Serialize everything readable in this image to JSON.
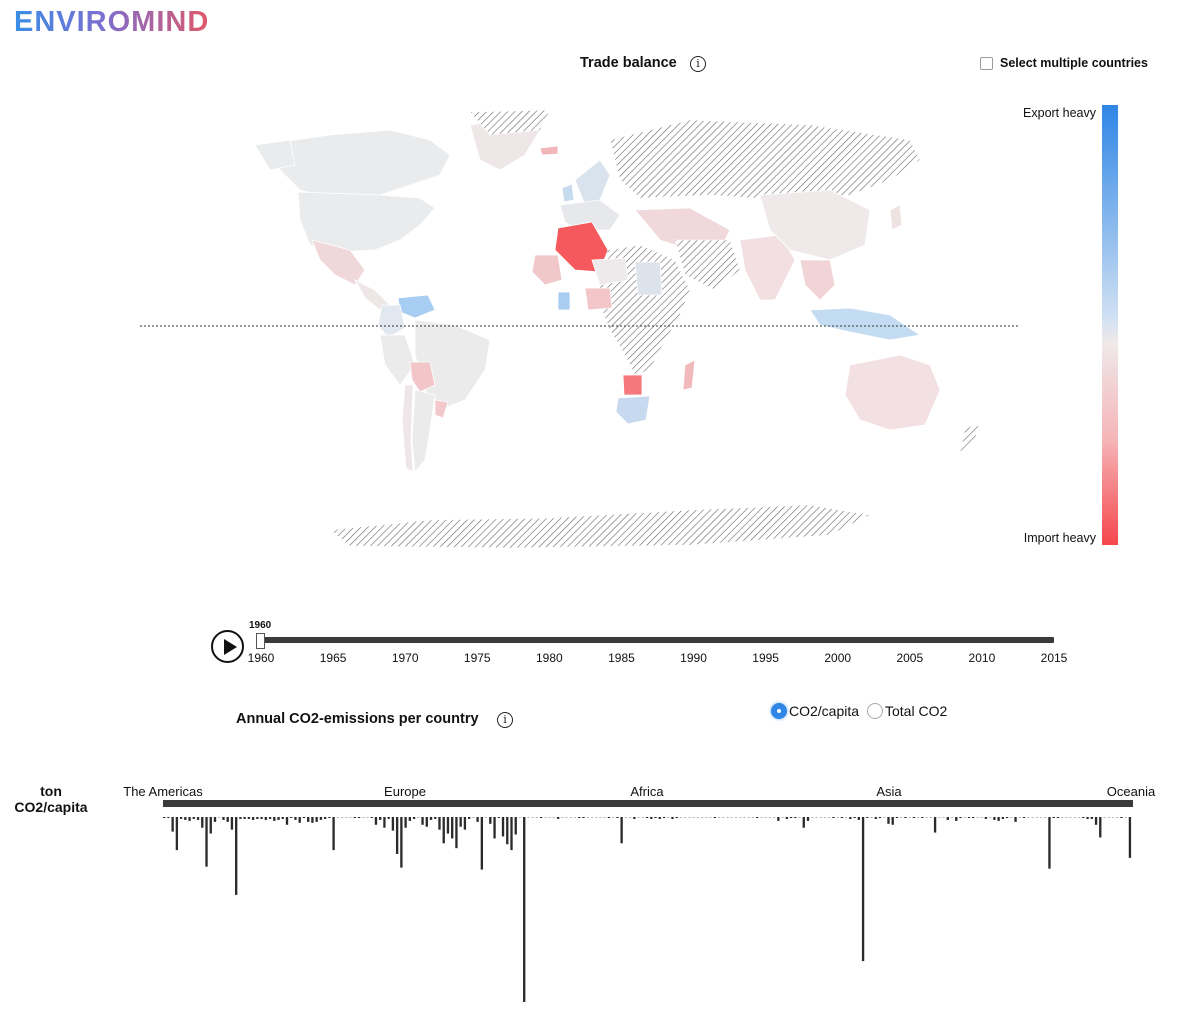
{
  "app": {
    "logo": "ENVIROMIND"
  },
  "map_panel": {
    "title": "Trade balance",
    "info_glyph": "i",
    "multi_select_label": "Select multiple countries",
    "multi_select_checked": false,
    "legend": {
      "top_label": "Export heavy",
      "bottom_label": "Import heavy",
      "colors": {
        "export": "#2f86e6",
        "neutral": "#ece9ea",
        "import": "#f5474c"
      }
    }
  },
  "timeline": {
    "current_year": "1960",
    "years": [
      "1960",
      "1965",
      "1970",
      "1975",
      "1980",
      "1985",
      "1990",
      "1995",
      "2000",
      "2005",
      "2010",
      "2015"
    ],
    "progress": 0
  },
  "emissions_panel": {
    "title": "Annual CO2-emissions per country",
    "info_glyph": "i",
    "options": [
      {
        "label": "CO2/capita",
        "selected": true
      },
      {
        "label": "Total CO2",
        "selected": false
      }
    ],
    "unit_line1": "ton",
    "unit_line2": "CO2/capita",
    "regions": [
      "The Americas",
      "Europe",
      "Africa",
      "Asia",
      "Oceania"
    ]
  },
  "chart_data": {
    "type": "bar",
    "orientation": "downward",
    "ylabel": "ton CO2/capita",
    "categories_groups": [
      "The Americas",
      "Europe",
      "Africa",
      "Asia",
      "Oceania"
    ],
    "values": [
      0.1,
      0.1,
      1.5,
      3.4,
      0.2,
      0.3,
      0.4,
      0.2,
      0.3,
      1.1,
      5.1,
      1.7,
      0.5,
      0,
      0.3,
      0.5,
      1.3,
      8.0,
      0.2,
      0.2,
      0.2,
      0.3,
      0.2,
      0.2,
      0.3,
      0.2,
      0.4,
      0.3,
      0.2,
      0.8,
      0.1,
      0.3,
      0.6,
      0.1,
      0.5,
      0.6,
      0.5,
      0.3,
      0.2,
      0.1,
      3.4,
      0,
      0,
      0,
      0,
      0.1,
      0.1,
      0,
      0,
      0.1,
      0.8,
      0.3,
      1.1,
      0.2,
      1.4,
      3.8,
      5.2,
      1.1,
      0.4,
      0.2,
      0,
      0.8,
      1.0,
      0.3,
      0.2,
      1.3,
      2.7,
      1.7,
      2.2,
      3.2,
      1.0,
      1.3,
      0.2,
      0,
      0.5,
      5.4,
      0,
      0.7,
      2.2,
      0.1,
      2.0,
      2.8,
      3.4,
      1.8,
      0,
      19.0,
      0,
      0,
      0,
      0.1,
      0,
      0,
      0,
      0.2,
      0,
      0,
      0,
      0,
      0.1,
      0.1,
      0,
      0,
      0,
      0,
      0,
      0.1,
      0,
      0.1,
      2.7,
      0,
      0,
      0.2,
      0,
      0,
      0.1,
      0.2,
      0.1,
      0.2,
      0.1,
      0,
      0.2,
      0.1,
      0,
      0,
      0,
      0,
      0,
      0,
      0,
      0,
      0.1,
      0,
      0,
      0,
      0,
      0,
      0,
      0,
      0,
      0,
      0.1,
      0,
      0,
      0,
      0,
      0.4,
      0,
      0.2,
      0.1,
      0.1,
      0,
      1.1,
      0.4,
      0,
      0,
      0,
      0,
      0,
      0.1,
      0,
      0.1,
      0,
      0.2,
      0.1,
      0.3,
      14.8,
      0.1,
      0,
      0.2,
      0.1,
      0,
      0.7,
      0.8,
      0.1,
      0,
      0.1,
      0,
      0.1,
      0,
      0.1,
      0,
      0,
      1.6,
      0,
      0,
      0.3,
      0,
      0.4,
      0.1,
      0,
      0.1,
      0.1,
      0,
      0,
      0.2,
      0,
      0.3,
      0.4,
      0.2,
      0.1,
      0,
      0.5,
      0,
      0.1,
      0,
      0,
      0,
      0,
      0,
      5.3,
      0.1,
      0.1,
      0,
      0,
      0,
      0,
      0,
      0.1,
      0.2,
      0.2,
      0.8,
      2.1,
      0,
      0,
      0,
      0,
      0.1,
      0,
      4.2
    ]
  }
}
